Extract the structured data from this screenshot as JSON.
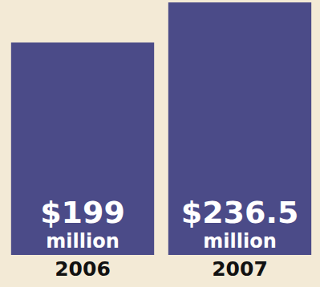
{
  "chart_data": {
    "type": "bar",
    "categories": [
      "2006",
      "2007"
    ],
    "values": [
      199,
      236.5
    ],
    "value_labels": [
      "$199 million",
      "$236.5 million"
    ],
    "data_labels": true,
    "color": "#4b4b88",
    "ylim": [
      0,
      236.5
    ],
    "tick_labels": "x",
    "grid": false
  }
}
